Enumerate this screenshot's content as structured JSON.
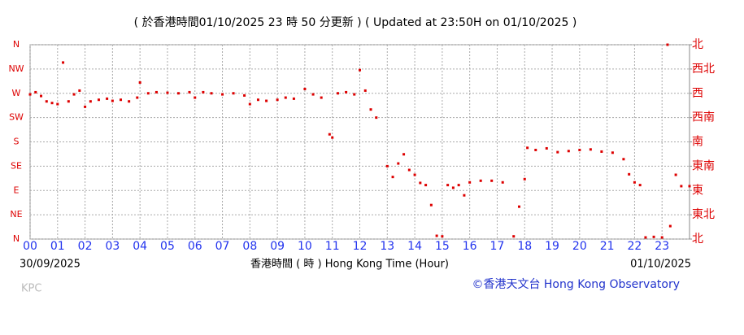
{
  "chart_data": {
    "type": "scatter",
    "title": "( 於香港時間01/10/2025 23 時 50 分更新 ) ( Updated at 23:50H on 01/10/2025 )",
    "x_label": "香港時間 ( 時 ) Hong Kong Time (Hour)",
    "start_date": "30/09/2025",
    "end_date": "01/10/2025",
    "station": "KPC",
    "credit": "©香港天文台 Hong Kong Observatory",
    "color": "#dd0000",
    "grid": true,
    "xlim": [
      0,
      24
    ],
    "xticks": [
      {
        "value": 0,
        "label": "00"
      },
      {
        "value": 1,
        "label": "01"
      },
      {
        "value": 2,
        "label": "02"
      },
      {
        "value": 3,
        "label": "03"
      },
      {
        "value": 4,
        "label": "04"
      },
      {
        "value": 5,
        "label": "05"
      },
      {
        "value": 6,
        "label": "06"
      },
      {
        "value": 7,
        "label": "07"
      },
      {
        "value": 8,
        "label": "08"
      },
      {
        "value": 9,
        "label": "09"
      },
      10,
      11,
      12,
      13,
      14,
      15,
      16,
      17,
      18,
      19,
      20,
      21,
      22,
      23
    ],
    "ylim": [
      0,
      360
    ],
    "yticks": [
      {
        "value": 0,
        "label": "N"
      },
      {
        "value": 45,
        "label": "NE"
      },
      {
        "value": 90,
        "label": "E"
      },
      {
        "value": 135,
        "label": "SE"
      },
      {
        "value": 180,
        "label": "S"
      },
      {
        "value": 225,
        "label": "SW"
      },
      {
        "value": 270,
        "label": "W"
      },
      {
        "value": 315,
        "label": "NW"
      },
      {
        "value": 360,
        "label": "N"
      }
    ],
    "y2lim": [
      0,
      360
    ],
    "y2ticks": [
      {
        "value": 0,
        "label": "北"
      },
      {
        "value": 45,
        "label": "東北"
      },
      {
        "value": 90,
        "label": "東"
      },
      {
        "value": 135,
        "label": "東南"
      },
      {
        "value": 180,
        "label": "南"
      },
      {
        "value": 225,
        "label": "西南"
      },
      {
        "value": 270,
        "label": "西"
      },
      {
        "value": 315,
        "label": "西北"
      },
      {
        "value": 360,
        "label": "北"
      }
    ],
    "x": [
      0.0,
      0.2,
      0.4,
      0.6,
      0.8,
      1.0,
      1.2,
      1.4,
      1.6,
      1.8,
      2.0,
      2.2,
      2.5,
      2.8,
      3.0,
      3.3,
      3.6,
      3.9,
      4.0,
      4.3,
      4.6,
      5.0,
      5.4,
      5.8,
      6.0,
      6.3,
      6.6,
      7.0,
      7.4,
      7.8,
      8.0,
      8.3,
      8.6,
      9.0,
      9.3,
      9.6,
      10.0,
      10.3,
      10.6,
      10.9,
      11.0,
      11.2,
      11.5,
      11.8,
      12.0,
      12.2,
      12.4,
      12.6,
      13.0,
      13.2,
      13.4,
      13.6,
      13.8,
      14.0,
      14.2,
      14.4,
      14.6,
      14.8,
      15.0,
      15.2,
      15.4,
      15.6,
      15.8,
      16.0,
      16.4,
      16.8,
      17.2,
      17.6,
      17.8,
      18.0,
      18.1,
      18.4,
      18.8,
      19.2,
      19.6,
      20.0,
      20.4,
      20.8,
      21.2,
      21.6,
      21.8,
      22.0,
      22.2,
      22.4,
      22.7,
      23.0,
      23.2,
      23.3,
      23.5,
      23.7,
      24.0
    ],
    "values": [
      268,
      272,
      265,
      255,
      252,
      250,
      327,
      255,
      268,
      275,
      245,
      255,
      258,
      260,
      256,
      258,
      255,
      262,
      290,
      270,
      272,
      271,
      270,
      272,
      262,
      272,
      270,
      268,
      270,
      266,
      250,
      258,
      256,
      258,
      262,
      260,
      278,
      268,
      262,
      194,
      188,
      270,
      272,
      268,
      313,
      275,
      240,
      225,
      135,
      115,
      140,
      157,
      128,
      119,
      104,
      100,
      63,
      6,
      5,
      100,
      95,
      100,
      81,
      105,
      108,
      108,
      105,
      5,
      60,
      111,
      169,
      165,
      168,
      161,
      163,
      165,
      166,
      162,
      160,
      148,
      120,
      105,
      100,
      3,
      4,
      3,
      360,
      24,
      119,
      98,
      98
    ]
  }
}
